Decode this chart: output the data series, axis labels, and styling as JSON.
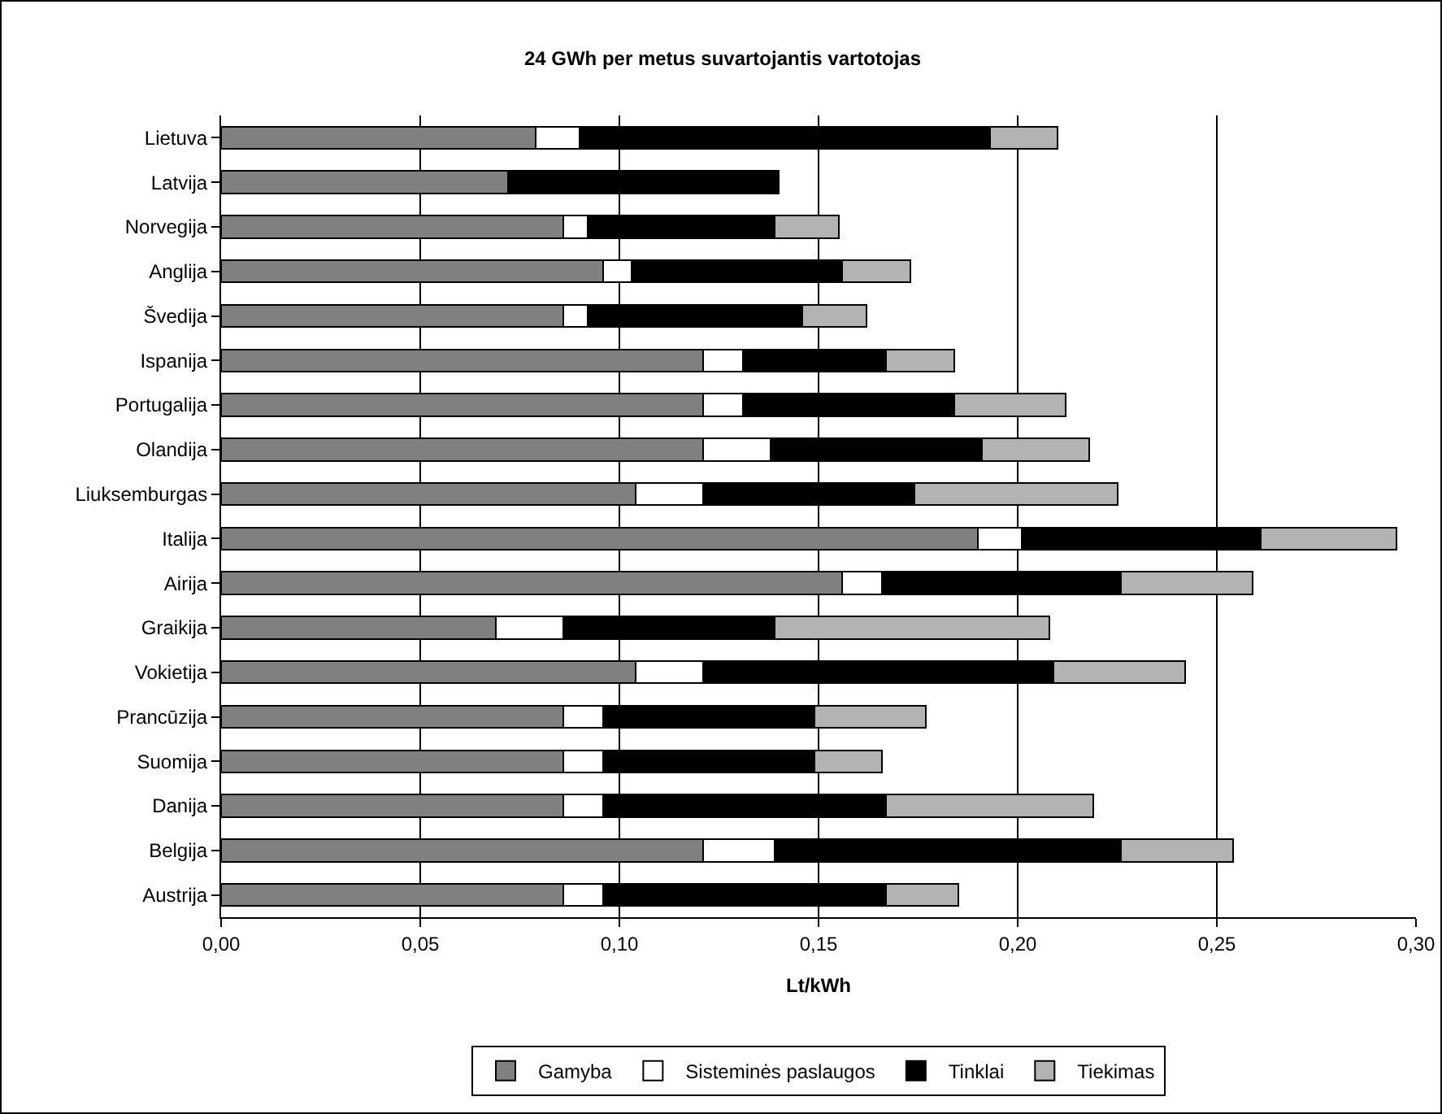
{
  "chart_data": {
    "type": "bar",
    "orientation": "horizontal",
    "stacked": true,
    "title": "24 GWh per metus suvartojantis vartotojas",
    "xlabel": "Lt/kWh",
    "categories": [
      "Lietuva",
      "Latvija",
      "Norvegija",
      "Anglija",
      "Švedija",
      "Ispanija",
      "Portugalija",
      "Olandija",
      "Liuksemburgas",
      "Italija",
      "Airija",
      "Graikija",
      "Vokietija",
      "Prancūzija",
      "Suomija",
      "Danija",
      "Belgija",
      "Austrija"
    ],
    "series": [
      {
        "name": "Gamyba",
        "color": "#808080",
        "values": [
          0.079,
          0.072,
          0.086,
          0.096,
          0.086,
          0.121,
          0.121,
          0.121,
          0.104,
          0.19,
          0.156,
          0.069,
          0.104,
          0.086,
          0.086,
          0.086,
          0.121,
          0.086
        ]
      },
      {
        "name": "Sisteminės paslaugos",
        "color": "#ffffff",
        "values": [
          0.011,
          null,
          0.006,
          0.007,
          0.006,
          0.01,
          0.01,
          0.017,
          0.017,
          0.011,
          0.01,
          0.017,
          0.017,
          0.01,
          0.01,
          0.01,
          0.018,
          0.01
        ]
      },
      {
        "name": "Tinklai",
        "color": "#000000",
        "values": [
          0.103,
          0.068,
          0.047,
          0.053,
          0.054,
          0.036,
          0.053,
          0.053,
          0.053,
          0.06,
          0.06,
          0.053,
          0.088,
          0.053,
          0.053,
          0.071,
          0.087,
          0.071
        ]
      },
      {
        "name": "Tiekimas",
        "color": "#b3b3b3",
        "values": [
          0.017,
          null,
          0.016,
          0.017,
          0.016,
          0.017,
          0.028,
          0.027,
          0.051,
          0.034,
          0.033,
          0.069,
          0.033,
          0.028,
          0.017,
          0.052,
          0.028,
          0.018
        ]
      }
    ],
    "xlim": [
      0,
      0.3
    ],
    "xticks": [
      {
        "value": 0,
        "label": "0,00"
      },
      {
        "value": 0.05,
        "label": "0,05"
      },
      {
        "value": 0.1,
        "label": "0,10"
      },
      {
        "value": 0.15,
        "label": "0,15"
      },
      {
        "value": 0.2,
        "label": "0,20"
      },
      {
        "value": 0.25,
        "label": "0,25"
      },
      {
        "value": 0.3,
        "label": "0,30"
      }
    ],
    "grid": "x",
    "legend": "bottom"
  }
}
